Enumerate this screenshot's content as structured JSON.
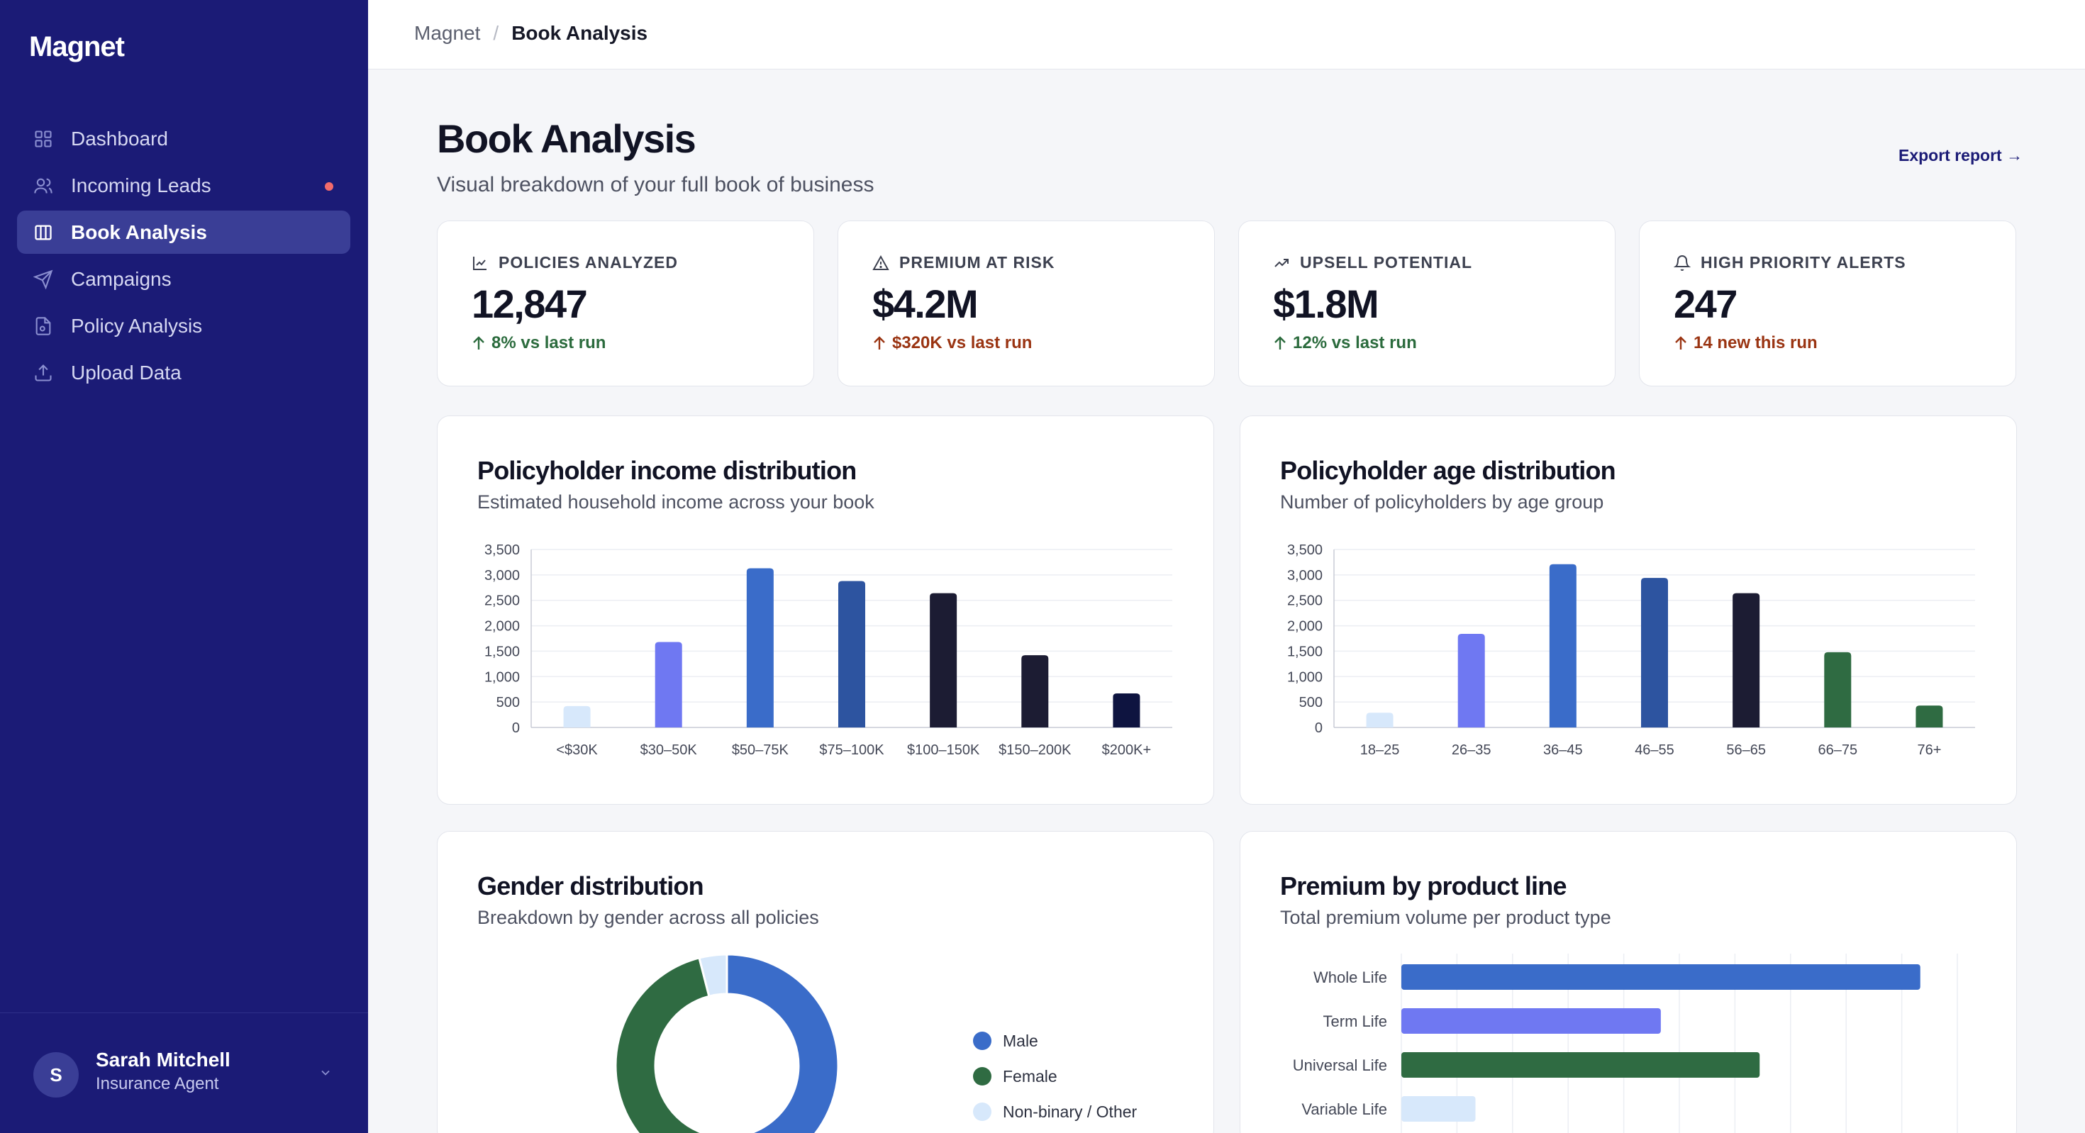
{
  "app": {
    "name": "Magnet"
  },
  "sidebar": {
    "items": [
      {
        "label": "Dashboard",
        "icon": "grid-icon",
        "active": false
      },
      {
        "label": "Incoming Leads",
        "icon": "users-icon",
        "active": false,
        "badge_color": "#f36b6b"
      },
      {
        "label": "Book Analysis",
        "icon": "columns-icon",
        "active": true
      },
      {
        "label": "Campaigns",
        "icon": "send-icon",
        "active": false
      },
      {
        "label": "Policy Analysis",
        "icon": "file-icon",
        "active": false
      },
      {
        "label": "Upload Data",
        "icon": "upload-icon",
        "active": false
      }
    ],
    "user": {
      "initial": "S",
      "name": "Sarah Mitchell",
      "role": "Insurance Agent"
    }
  },
  "breadcrumb": {
    "root": "Magnet",
    "separator": "/",
    "current": "Book Analysis"
  },
  "header": {
    "title": "Book Analysis",
    "subtitle": "Visual breakdown of your full book of business",
    "export_label": "Export report →"
  },
  "kpis": [
    {
      "label": "POLICIES ANALYZED",
      "value": "12,847",
      "delta": "8% vs last run",
      "tone": "green",
      "icon": "line-chart-icon"
    },
    {
      "label": "PREMIUM AT RISK",
      "value": "$4.2M",
      "delta": "$320K vs last run",
      "tone": "brown",
      "icon": "warning-icon"
    },
    {
      "label": "UPSELL POTENTIAL",
      "value": "$1.8M",
      "delta": "12% vs last run",
      "tone": "green",
      "icon": "trend-up-icon"
    },
    {
      "label": "HIGH PRIORITY ALERTS",
      "value": "247",
      "delta": "14 new this run",
      "tone": "brown",
      "icon": "bell-icon"
    }
  ],
  "colors": {
    "sidebar_bg": "#1b1b76",
    "accent": "#1b1b76",
    "positive": "#2b6b3d",
    "negative": "#9a3412"
  },
  "charts": {
    "income": {
      "title": "Policyholder income distribution",
      "subtitle": "Estimated household income across your book"
    },
    "age": {
      "title": "Policyholder age distribution",
      "subtitle": "Number of policyholders by age group"
    },
    "gender": {
      "title": "Gender distribution",
      "subtitle": "Breakdown by gender across all policies"
    },
    "product": {
      "title": "Premium by product line",
      "subtitle": "Total premium volume per product type"
    }
  },
  "chart_data": [
    {
      "type": "bar",
      "title": "Policyholder income distribution",
      "categories": [
        "<$30K",
        "$30–50K",
        "$50–75K",
        "$75–100K",
        "$100–150K",
        "$150–200K",
        "$200K+"
      ],
      "values": [
        420,
        1680,
        3130,
        2880,
        2640,
        1420,
        670
      ],
      "colors": [
        "#d7e8fb",
        "#6f78f2",
        "#3a6cc9",
        "#2d54a0",
        "#1c1c33",
        "#1c1c33",
        "#0e1440"
      ],
      "ylim": [
        0,
        3500
      ],
      "yticks": [
        "0",
        "500",
        "1,000",
        "1,500",
        "2,000",
        "2,500",
        "3,000",
        "3,500"
      ],
      "grid": true
    },
    {
      "type": "bar",
      "title": "Policyholder age distribution",
      "categories": [
        "18–25",
        "26–35",
        "36–45",
        "46–55",
        "56–65",
        "66–75",
        "76+"
      ],
      "values": [
        290,
        1840,
        3210,
        2940,
        2640,
        1480,
        430
      ],
      "colors": [
        "#d7e8fb",
        "#6f78f2",
        "#3a6cc9",
        "#2d54a0",
        "#1c1c33",
        "#2f6b42",
        "#2f6b42"
      ],
      "ylim": [
        0,
        3500
      ],
      "yticks": [
        "0",
        "500",
        "1,000",
        "1,500",
        "2,000",
        "2,500",
        "3,000",
        "3,500"
      ],
      "grid": true
    },
    {
      "type": "pie",
      "title": "Gender distribution",
      "labels": [
        "Male",
        "Female",
        "Non-binary / Other"
      ],
      "values": [
        51,
        45,
        4
      ],
      "colors": [
        "#3a6cc9",
        "#2f6b42",
        "#d7e8fb"
      ],
      "legend": "right"
    },
    {
      "type": "bar",
      "orientation": "horizontal",
      "title": "Premium by product line",
      "categories": [
        "Whole Life",
        "Term Life",
        "Universal Life",
        "Variable Life"
      ],
      "values": [
        84,
        42,
        58,
        12
      ],
      "colors": [
        "#3a6cc9",
        "#6f78f2",
        "#2f6b42",
        "#d7e8fb"
      ],
      "xlim": [
        0,
        90
      ],
      "grid": true
    }
  ]
}
